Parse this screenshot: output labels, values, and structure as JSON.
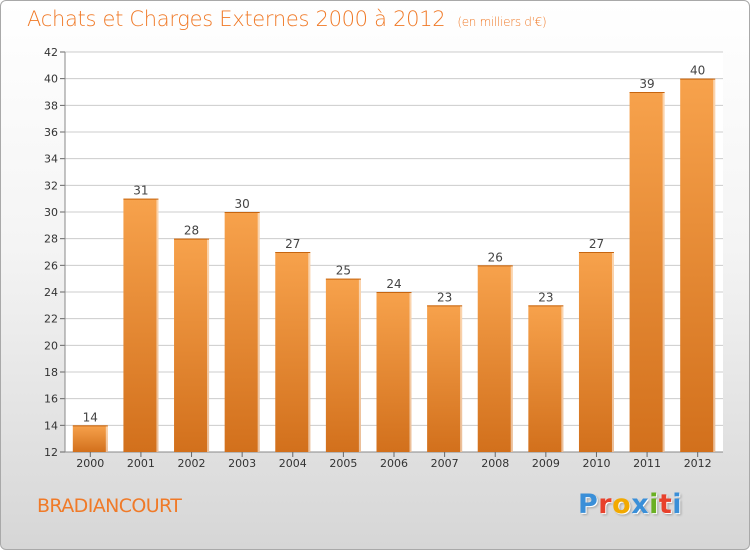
{
  "title": "Achats et Charges Externes 2000 à 2012",
  "subtitle": "(en milliers d'€)",
  "town": "BRADIANCOURT",
  "logo": {
    "letters": [
      "P",
      "r",
      "o",
      "x",
      "i",
      "t",
      "i"
    ],
    "colors": [
      "#3a8fd8",
      "#e8412c",
      "#f2a900",
      "#3a8fd8",
      "#6ab023",
      "#e8412c",
      "#3a8fd8"
    ]
  },
  "colors": {
    "title": "#f07a28",
    "bar_light": "#f7a24c",
    "bar_dark": "#d2701c",
    "grid": "#cccccc"
  },
  "chart_data": {
    "type": "bar",
    "title": "Achats et Charges Externes 2000 à 2012",
    "subtitle": "(en milliers d'€)",
    "categories": [
      "2000",
      "2001",
      "2002",
      "2003",
      "2004",
      "2005",
      "2006",
      "2007",
      "2008",
      "2009",
      "2010",
      "2011",
      "2012"
    ],
    "values": [
      14,
      31,
      28,
      30,
      27,
      25,
      24,
      23,
      26,
      23,
      27,
      39,
      40
    ],
    "ylim": [
      12,
      42
    ],
    "yticks": [
      12,
      14,
      16,
      18,
      20,
      22,
      24,
      26,
      28,
      30,
      32,
      34,
      36,
      38,
      40,
      42
    ],
    "grid": true
  }
}
